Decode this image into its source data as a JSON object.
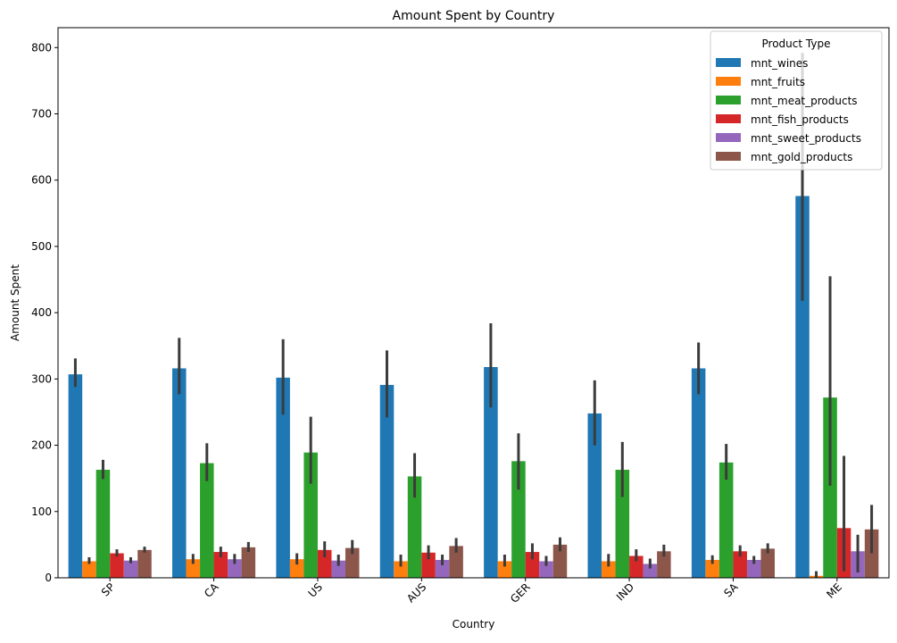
{
  "chart_data": {
    "type": "bar",
    "title": "Amount Spent by Country",
    "xlabel": "Country",
    "ylabel": "Amount Spent",
    "ylim": [
      0,
      830
    ],
    "yticks": [
      0,
      100,
      200,
      300,
      400,
      500,
      600,
      700,
      800
    ],
    "categories": [
      "SP",
      "CA",
      "US",
      "AUS",
      "GER",
      "IND",
      "SA",
      "ME"
    ],
    "legend": {
      "title": "Product Type",
      "location": "upper right"
    },
    "grid": false,
    "series": [
      {
        "name": "mnt_wines",
        "color": "#1f77b4",
        "values": [
          307,
          316,
          302,
          291,
          318,
          248,
          316,
          576
        ],
        "err_low": [
          288,
          277,
          246,
          242,
          257,
          200,
          277,
          418
        ],
        "err_high": [
          331,
          362,
          360,
          343,
          384,
          298,
          355,
          792
        ]
      },
      {
        "name": "mnt_fruits",
        "color": "#ff7f0e",
        "values": [
          25,
          28,
          28,
          25,
          25,
          25,
          27,
          3
        ],
        "err_low": [
          21,
          21,
          20,
          17,
          17,
          17,
          21,
          0
        ],
        "err_high": [
          31,
          36,
          37,
          35,
          35,
          36,
          34,
          10
        ]
      },
      {
        "name": "mnt_meat_products",
        "color": "#2ca02c",
        "values": [
          163,
          173,
          189,
          153,
          176,
          163,
          174,
          272
        ],
        "err_low": [
          149,
          146,
          142,
          121,
          133,
          122,
          148,
          139
        ],
        "err_high": [
          178,
          203,
          243,
          188,
          218,
          205,
          202,
          455
        ]
      },
      {
        "name": "mnt_fish_products",
        "color": "#d62728",
        "values": [
          37,
          39,
          42,
          38,
          39,
          33,
          40,
          75
        ],
        "err_low": [
          32,
          31,
          31,
          28,
          28,
          25,
          32,
          10
        ],
        "err_high": [
          43,
          47,
          55,
          49,
          52,
          43,
          49,
          184
        ]
      },
      {
        "name": "mnt_sweet_products",
        "color": "#9467bd",
        "values": [
          26,
          28,
          26,
          27,
          25,
          21,
          27,
          40
        ],
        "err_low": [
          22,
          21,
          18,
          19,
          18,
          14,
          21,
          8
        ],
        "err_high": [
          31,
          36,
          35,
          35,
          33,
          29,
          33,
          65
        ]
      },
      {
        "name": "mnt_gold_products",
        "color": "#8c564b",
        "values": [
          42,
          46,
          45,
          48,
          50,
          40,
          44,
          73
        ],
        "err_low": [
          38,
          39,
          36,
          38,
          40,
          32,
          37,
          37
        ],
        "err_high": [
          47,
          54,
          57,
          60,
          61,
          50,
          52,
          110
        ]
      }
    ]
  }
}
